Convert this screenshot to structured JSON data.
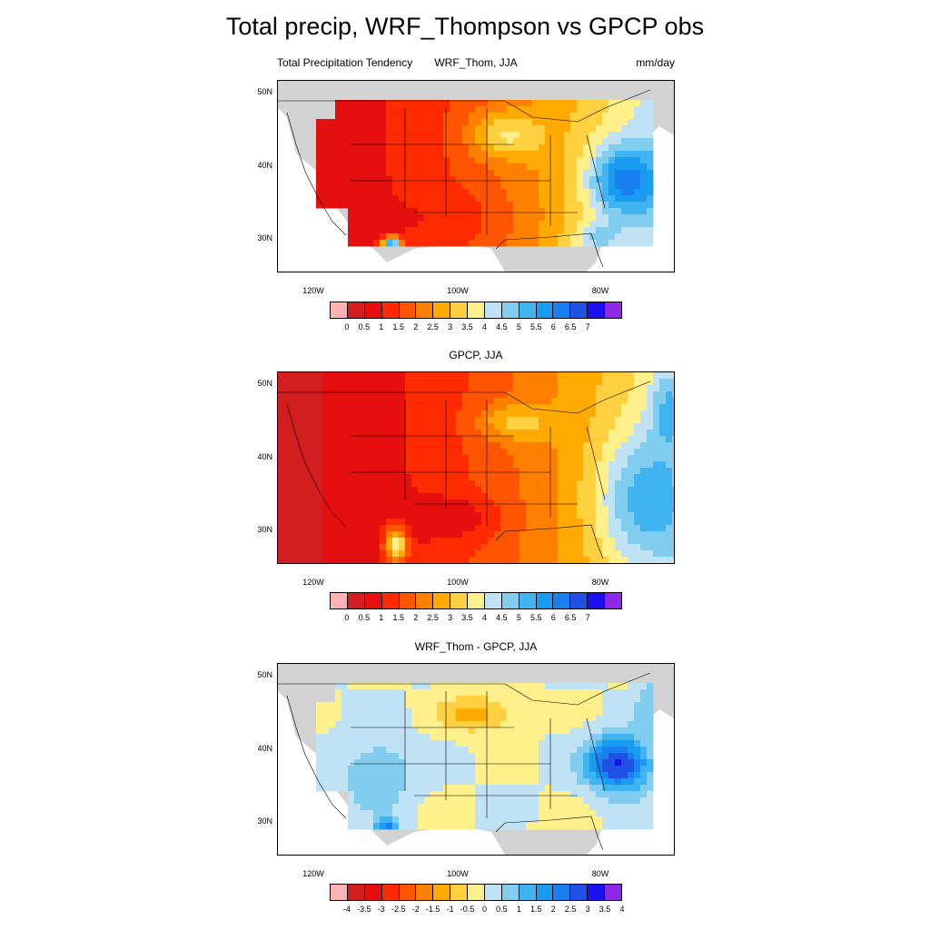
{
  "title": "Total precip, WRF_Thompson vs GPCP obs",
  "colors": {
    "precip_scale": [
      "#ffb2b2",
      "#d21e1e",
      "#e60f0f",
      "#ff2a00",
      "#ff5500",
      "#ff8000",
      "#ffaa00",
      "#ffd040",
      "#fff08c",
      "#bfe3f5",
      "#80cdf0",
      "#40b4f0",
      "#199cf0",
      "#1a7ff0",
      "#2050e6",
      "#1a10f0",
      "#8c28e6"
    ],
    "land_gray": "#d3d3d3",
    "ocean": "#ffffff"
  },
  "panels": [
    {
      "left_title": "Total Precipitation Tendency",
      "center_title": "WRF_Thom, JJA",
      "right_title": "mm/day",
      "lat_labels": [
        "50N",
        "40N",
        "30N"
      ],
      "lon_labels": [
        "120W",
        "100W",
        "80W"
      ],
      "colorbar_labels": [
        "0",
        "0.5",
        "1",
        "1.5",
        "2",
        "2.5",
        "3",
        "3.5",
        "4",
        "4.5",
        "5",
        "5.5",
        "6",
        "6.5",
        "7"
      ],
      "masked_domain": true
    },
    {
      "left_title": "",
      "center_title": "GPCP, JJA",
      "right_title": "",
      "lat_labels": [
        "50N",
        "40N",
        "30N"
      ],
      "lon_labels": [
        "120W",
        "100W",
        "80W"
      ],
      "colorbar_labels": [
        "0",
        "0.5",
        "1",
        "1.5",
        "2",
        "2.5",
        "3",
        "3.5",
        "4",
        "4.5",
        "5",
        "5.5",
        "6",
        "6.5",
        "7"
      ],
      "masked_domain": false
    },
    {
      "left_title": "",
      "center_title": "WRF_Thom - GPCP, JJA",
      "right_title": "",
      "lat_labels": [
        "50N",
        "40N",
        "30N"
      ],
      "lon_labels": [
        "120W",
        "100W",
        "80W"
      ],
      "colorbar_labels": [
        "-4",
        "-3.5",
        "-3",
        "-2.5",
        "-2",
        "-1.5",
        "-1",
        "-0.5",
        "0",
        "0.5",
        "1",
        "1.5",
        "2",
        "2.5",
        "3",
        "3.5",
        "4"
      ],
      "masked_domain": true
    }
  ]
}
